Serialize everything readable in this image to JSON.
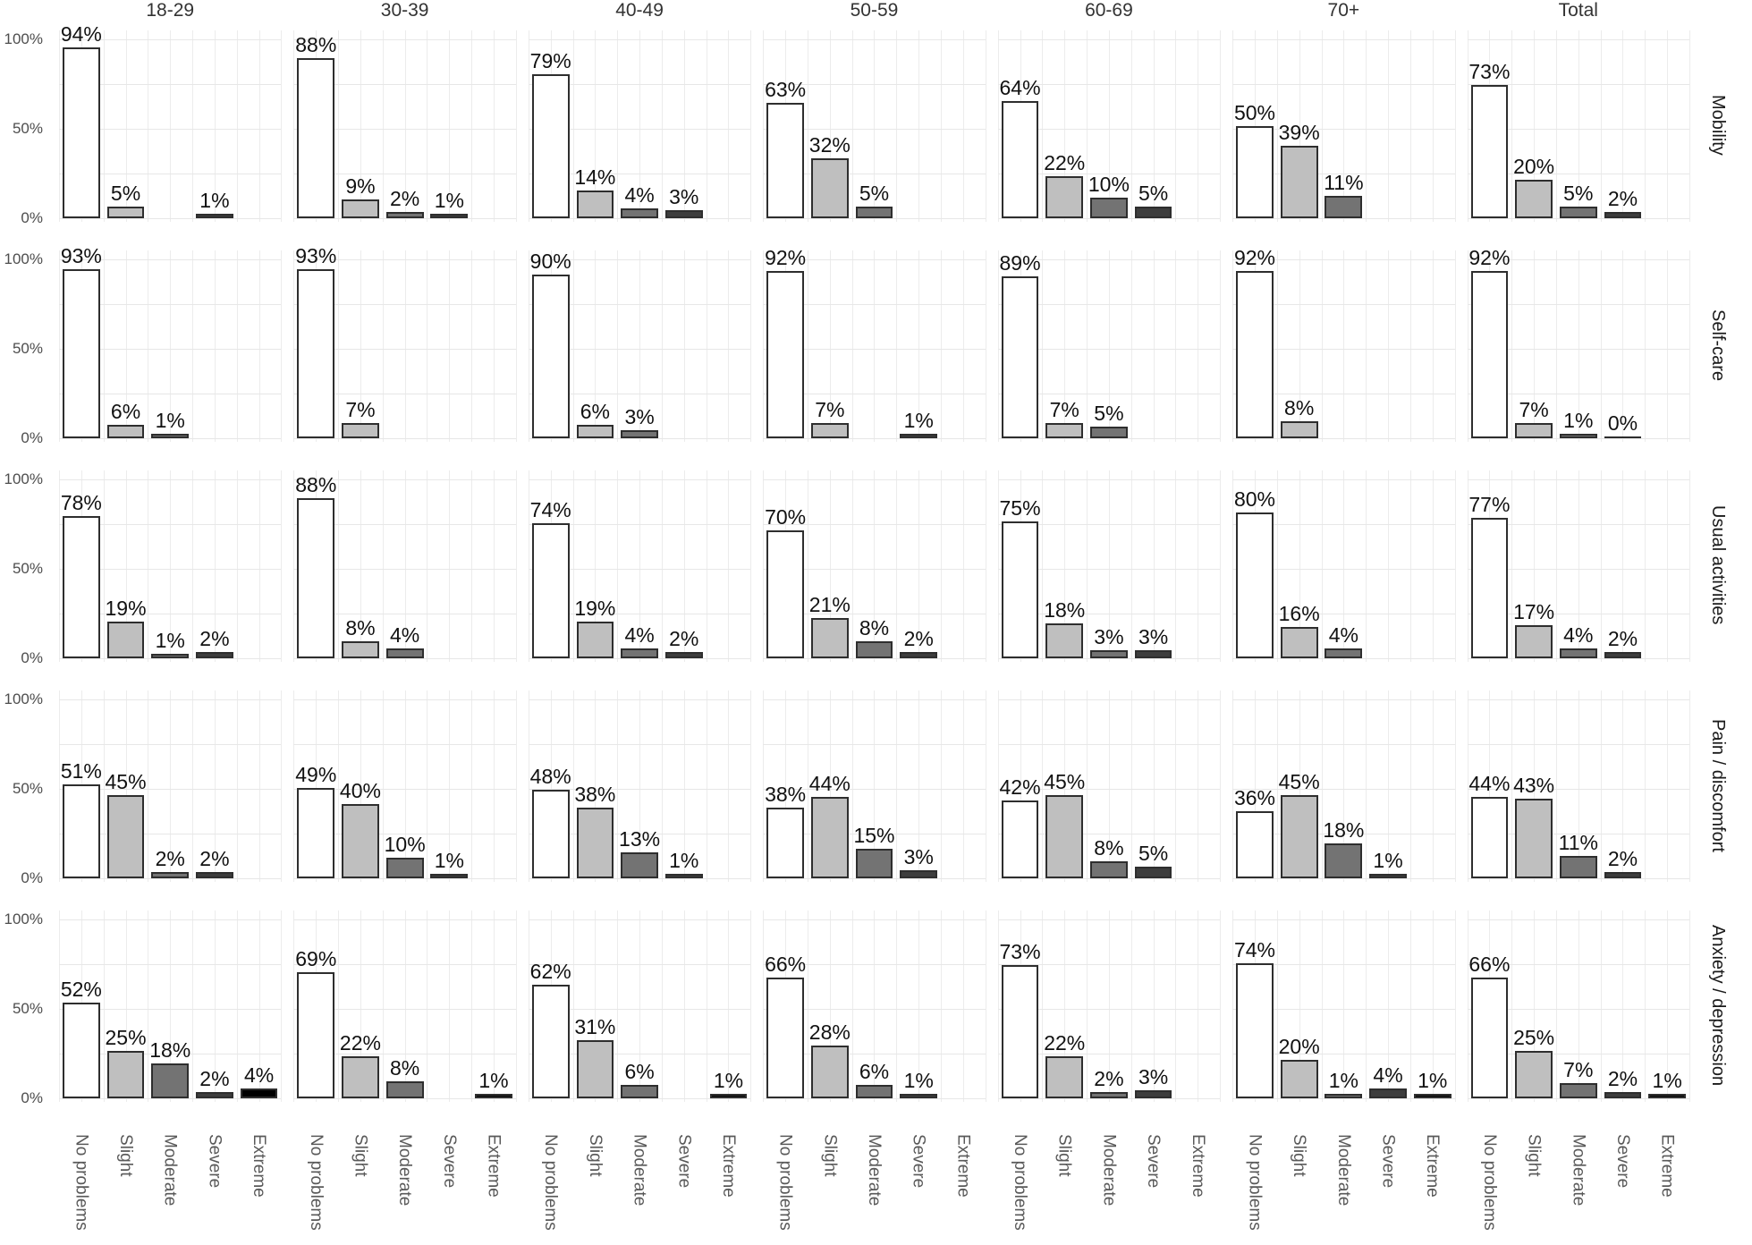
{
  "chart_data": {
    "type": "bar",
    "title": "",
    "xlabel": "",
    "ylabel": "",
    "ylim": [
      0,
      100
    ],
    "grid": true,
    "y_ticks": [
      "100%",
      "50%",
      "0%"
    ],
    "y_tick_values": [
      100,
      50,
      0
    ],
    "value_suffix": "%",
    "facet_columns": [
      "18-29",
      "30-39",
      "40-49",
      "50-59",
      "60-69",
      "70+",
      "Total"
    ],
    "facet_rows": [
      "Mobility",
      "Self-care",
      "Usual activities",
      "Pain / discomfort",
      "Anxiety / depression"
    ],
    "categories": [
      "No problems",
      "Slight",
      "Moderate",
      "Severe",
      "Extreme"
    ],
    "series": [
      {
        "row": "Mobility",
        "panels": [
          {
            "col": "18-29",
            "values": [
              94,
              5,
              null,
              1,
              null
            ]
          },
          {
            "col": "30-39",
            "values": [
              88,
              9,
              2,
              1,
              null
            ]
          },
          {
            "col": "40-49",
            "values": [
              79,
              14,
              4,
              3,
              null
            ]
          },
          {
            "col": "50-59",
            "values": [
              63,
              32,
              5,
              null,
              null
            ]
          },
          {
            "col": "60-69",
            "values": [
              64,
              22,
              10,
              5,
              null
            ]
          },
          {
            "col": "70+",
            "values": [
              50,
              39,
              11,
              null,
              null
            ]
          },
          {
            "col": "Total",
            "values": [
              73,
              20,
              5,
              2,
              null
            ]
          }
        ]
      },
      {
        "row": "Self-care",
        "panels": [
          {
            "col": "18-29",
            "values": [
              93,
              6,
              1,
              null,
              null
            ]
          },
          {
            "col": "30-39",
            "values": [
              93,
              7,
              null,
              null,
              null
            ]
          },
          {
            "col": "40-49",
            "values": [
              90,
              6,
              3,
              null,
              null
            ]
          },
          {
            "col": "50-59",
            "values": [
              92,
              7,
              null,
              1,
              null
            ]
          },
          {
            "col": "60-69",
            "values": [
              89,
              7,
              5,
              null,
              null
            ]
          },
          {
            "col": "70+",
            "values": [
              92,
              8,
              null,
              null,
              null
            ]
          },
          {
            "col": "Total",
            "values": [
              92,
              7,
              1,
              0,
              null
            ]
          }
        ]
      },
      {
        "row": "Usual activities",
        "panels": [
          {
            "col": "18-29",
            "values": [
              78,
              19,
              1,
              2,
              null
            ]
          },
          {
            "col": "30-39",
            "values": [
              88,
              8,
              4,
              null,
              null
            ]
          },
          {
            "col": "40-49",
            "values": [
              74,
              19,
              4,
              2,
              null
            ]
          },
          {
            "col": "50-59",
            "values": [
              70,
              21,
              8,
              2,
              null
            ]
          },
          {
            "col": "60-69",
            "values": [
              75,
              18,
              3,
              3,
              null
            ]
          },
          {
            "col": "70+",
            "values": [
              80,
              16,
              4,
              null,
              null
            ]
          },
          {
            "col": "Total",
            "values": [
              77,
              17,
              4,
              2,
              null
            ]
          }
        ]
      },
      {
        "row": "Pain / discomfort",
        "panels": [
          {
            "col": "18-29",
            "values": [
              51,
              45,
              2,
              2,
              null
            ]
          },
          {
            "col": "30-39",
            "values": [
              49,
              40,
              10,
              1,
              null
            ]
          },
          {
            "col": "40-49",
            "values": [
              48,
              38,
              13,
              1,
              null
            ]
          },
          {
            "col": "50-59",
            "values": [
              38,
              44,
              15,
              3,
              null
            ]
          },
          {
            "col": "60-69",
            "values": [
              42,
              45,
              8,
              5,
              null
            ]
          },
          {
            "col": "70+",
            "values": [
              36,
              45,
              18,
              1,
              null
            ]
          },
          {
            "col": "Total",
            "values": [
              44,
              43,
              11,
              2,
              null
            ]
          }
        ]
      },
      {
        "row": "Anxiety / depression",
        "panels": [
          {
            "col": "18-29",
            "values": [
              52,
              25,
              18,
              2,
              4
            ]
          },
          {
            "col": "30-39",
            "values": [
              69,
              22,
              8,
              null,
              1
            ]
          },
          {
            "col": "40-49",
            "values": [
              62,
              31,
              6,
              null,
              1
            ]
          },
          {
            "col": "50-59",
            "values": [
              66,
              28,
              6,
              1,
              null
            ]
          },
          {
            "col": "60-69",
            "values": [
              73,
              22,
              2,
              3,
              null
            ]
          },
          {
            "col": "70+",
            "values": [
              74,
              20,
              1,
              4,
              1
            ]
          },
          {
            "col": "Total",
            "values": [
              66,
              25,
              7,
              2,
              1
            ]
          }
        ]
      }
    ],
    "colors": {
      "no_problems": "#ffffff",
      "slight": "#bfbfbf",
      "moderate": "#737373",
      "severe": "#3d3d3d",
      "extreme": "#000000",
      "bar_border": "#2e2e2e",
      "grid": "#e9e9e9",
      "axis_text": "#595959",
      "value_text": "#111111"
    },
    "legend_position": "none"
  }
}
